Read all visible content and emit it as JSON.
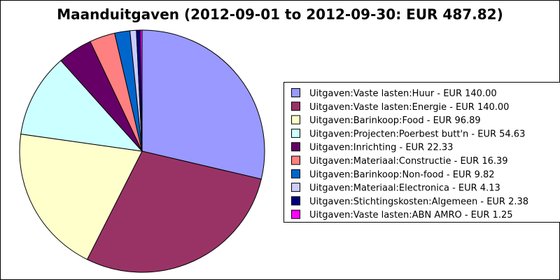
{
  "chart_data": {
    "type": "pie",
    "title": "Maanduitgaven (2012-09-01 to 2012-09-30: EUR 487.82)",
    "categories": [
      "Uitgaven:Vaste lasten:Huur - EUR 140.00",
      "Uitgaven:Vaste lasten:Energie - EUR 140.00",
      "Uitgaven:Barinkoop:Food - EUR 96.89",
      "Uitgaven:Projecten:Poerbest butt'n - EUR 54.63",
      "Uitgaven:Inrichting - EUR 22.33",
      "Uitgaven:Materiaal:Constructie - EUR 16.39",
      "Uitgaven:Barinkoop:Non-food - EUR 9.82",
      "Uitgaven:Materiaal:Electronica - EUR 4.13",
      "Uitgaven:Stichtingskosten:Algemeen - EUR 2.38",
      "Uitgaven:Vaste lasten:ABN AMRO - EUR 1.25"
    ],
    "values": [
      140.0,
      140.0,
      96.89,
      54.63,
      22.33,
      16.39,
      9.82,
      4.13,
      2.38,
      1.25
    ],
    "colors": [
      "#9999ff",
      "#993366",
      "#ffffcc",
      "#ccffff",
      "#660066",
      "#ff8080",
      "#0066cc",
      "#ccccff",
      "#000080",
      "#ff00ff"
    ]
  }
}
